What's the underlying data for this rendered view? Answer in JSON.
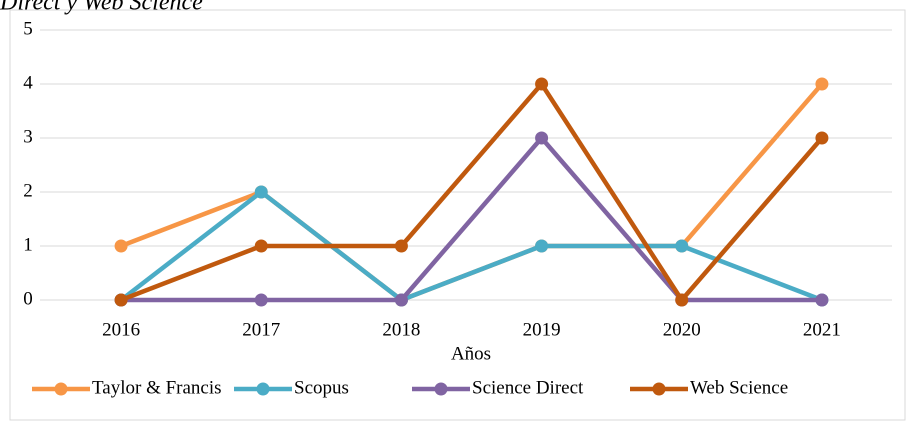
{
  "chart_data": {
    "type": "line",
    "title": "Direct y Web Science",
    "x_label": "Años",
    "categories": [
      "2016",
      "2017",
      "2018",
      "2019",
      "2020",
      "2021"
    ],
    "series": [
      {
        "name": "Taylor & Francis",
        "color": "#f79646",
        "values": [
          1,
          2,
          0,
          1,
          1,
          4
        ]
      },
      {
        "name": "Scopus",
        "color": "#4bacc6",
        "values": [
          0,
          2,
          0,
          1,
          1,
          0
        ]
      },
      {
        "name": "Science Direct",
        "color": "#8064a2",
        "values": [
          0,
          0,
          0,
          3,
          0,
          0
        ]
      },
      {
        "name": "Web Science",
        "color": "#c0590e",
        "values": [
          0,
          1,
          1,
          4,
          0,
          3
        ]
      }
    ],
    "ylim": [
      0,
      5
    ],
    "yticks": [
      0,
      1,
      2,
      3,
      4,
      5
    ],
    "grid": true,
    "legend": "bottom"
  }
}
